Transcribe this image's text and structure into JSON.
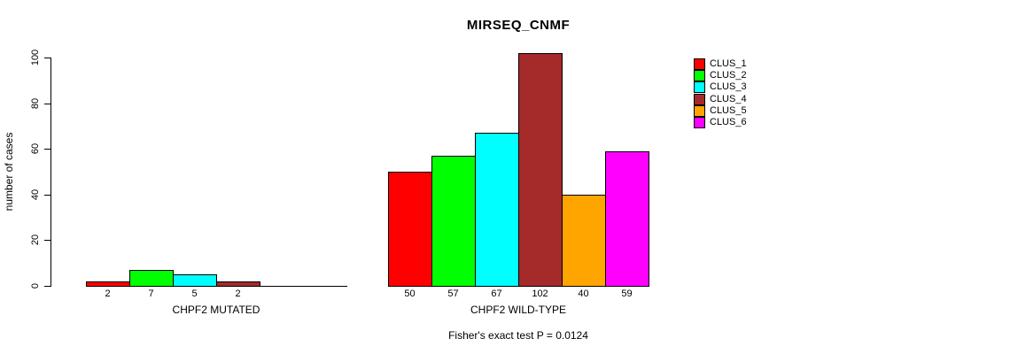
{
  "chart_data": {
    "type": "bar",
    "title": "MIRSEQ_CNMF",
    "xlabel": "",
    "ylabel": "number of cases",
    "ylim": [
      0,
      100
    ],
    "yticks": [
      0,
      20,
      40,
      60,
      80,
      100
    ],
    "grid": false,
    "legend_position": "right",
    "categories": [
      "CHPF2 MUTATED",
      "CHPF2 WILD-TYPE"
    ],
    "series": [
      {
        "name": "CLUS_1",
        "color": "#FF0000",
        "values": [
          2,
          50
        ]
      },
      {
        "name": "CLUS_2",
        "color": "#00FF00",
        "values": [
          7,
          57
        ]
      },
      {
        "name": "CLUS_3",
        "color": "#00FFFF",
        "values": [
          5,
          67
        ]
      },
      {
        "name": "CLUS_4",
        "color": "#A52A2A",
        "values": [
          2,
          102
        ]
      },
      {
        "name": "CLUS_5",
        "color": "#FFA500",
        "values": [
          0,
          40
        ]
      },
      {
        "name": "CLUS_6",
        "color": "#FF00FF",
        "values": [
          0,
          59
        ]
      }
    ],
    "bar_value_labels": "shown below each nonzero bar",
    "annotation": "Fisher's exact test P = 0.0124"
  }
}
